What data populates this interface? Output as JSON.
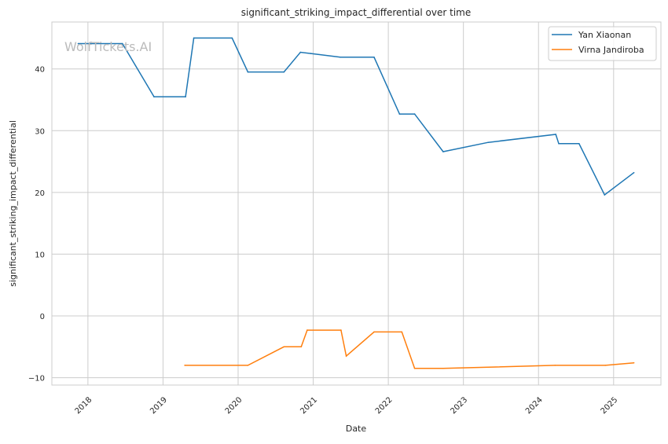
{
  "watermark": "WolfTickets.AI",
  "chart_data": {
    "type": "line",
    "title": "significant_striking_impact_differential over time",
    "xlabel": "Date",
    "ylabel": "significant_striking_impact_differential",
    "xlim": [
      2017.52,
      2025.63
    ],
    "ylim": [
      -11.2,
      47.6
    ],
    "xticks": [
      2018,
      2019,
      2020,
      2021,
      2022,
      2023,
      2024,
      2025
    ],
    "xtick_labels": [
      "2018",
      "2019",
      "2020",
      "2021",
      "2022",
      "2023",
      "2024",
      "2025"
    ],
    "yticks": [
      -10,
      0,
      10,
      20,
      30,
      40
    ],
    "ytick_labels": [
      "−10",
      "0",
      "10",
      "20",
      "30",
      "40"
    ],
    "grid": true,
    "legend_position": "top-right",
    "series": [
      {
        "name": "Yan Xiaonan",
        "color": "#1f77b4",
        "x": [
          2017.87,
          2018.46,
          2018.88,
          2019.3,
          2019.41,
          2019.92,
          2020.13,
          2020.61,
          2020.83,
          2020.97,
          2021.36,
          2021.81,
          2022.15,
          2022.35,
          2022.73,
          2023.33,
          2024.23,
          2024.27,
          2024.54,
          2024.88,
          2025.27
        ],
        "y": [
          44.1,
          44.1,
          35.5,
          35.5,
          45.0,
          45.0,
          39.5,
          39.5,
          42.7,
          42.5,
          41.9,
          41.9,
          32.7,
          32.7,
          26.6,
          28.1,
          29.4,
          27.9,
          27.9,
          19.6,
          23.2
        ]
      },
      {
        "name": "Virna Jandiroba",
        "color": "#ff7f0e",
        "x": [
          2019.29,
          2020.13,
          2020.61,
          2020.84,
          2020.92,
          2021.37,
          2021.44,
          2021.81,
          2022.18,
          2022.35,
          2022.73,
          2024.22,
          2024.89,
          2025.27
        ],
        "y": [
          -8.0,
          -8.0,
          -5.0,
          -5.0,
          -2.3,
          -2.3,
          -6.5,
          -2.6,
          -2.6,
          -8.5,
          -8.5,
          -8.0,
          -8.0,
          -7.6
        ]
      }
    ]
  }
}
